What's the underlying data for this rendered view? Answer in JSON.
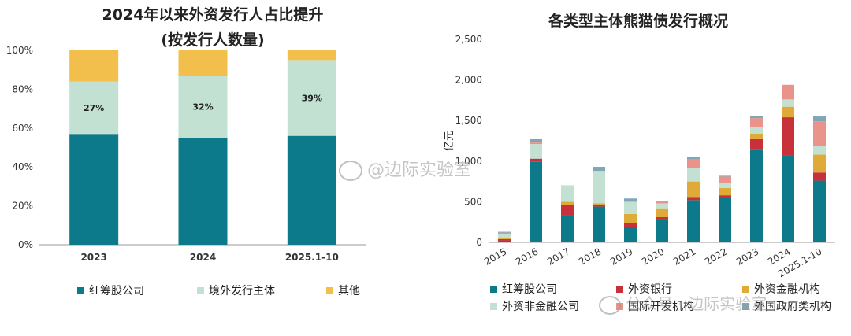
{
  "chart_data": [
    {
      "type": "bar",
      "stacked": true,
      "title_line1": "2024年以来外资发行人占比提升",
      "title_line2": "(按发行人数量)",
      "categories": [
        "2023",
        "2024",
        "2025.1-10"
      ],
      "series": [
        {
          "name": "红筹股公司",
          "color": "#0c7a8a",
          "values": [
            57,
            55,
            56
          ]
        },
        {
          "name": "境外发行主体",
          "color": "#c2e1d3",
          "values": [
            27,
            32,
            39
          ]
        },
        {
          "name": "其他",
          "color": "#f2bf4d",
          "values": [
            16,
            13,
            5
          ]
        }
      ],
      "data_labels": [
        "27%",
        "32%",
        "39%"
      ],
      "y_ticks": [
        "0%",
        "20%",
        "40%",
        "60%",
        "80%",
        "100%"
      ],
      "ylim": [
        0,
        100
      ],
      "legend_position": "bottom"
    },
    {
      "type": "bar",
      "stacked": true,
      "title": "各类型主体熊猫债发行概况",
      "ylabel": "亿元",
      "categories": [
        "2015",
        "2016",
        "2017",
        "2018",
        "2019",
        "2020",
        "2021",
        "2022",
        "2023",
        "2024",
        "2025.1-10"
      ],
      "series": [
        {
          "name": "红筹股公司",
          "color": "#0c7a8a",
          "values": [
            20,
            990,
            330,
            440,
            190,
            290,
            520,
            550,
            1150,
            1070,
            760
          ]
        },
        {
          "name": "外资银行",
          "color": "#c8303a",
          "values": [
            20,
            40,
            130,
            20,
            50,
            20,
            40,
            30,
            120,
            470,
            100
          ]
        },
        {
          "name": "外资金融机构",
          "color": "#e0aa38",
          "values": [
            10,
            0,
            40,
            20,
            110,
            110,
            190,
            90,
            70,
            130,
            220
          ]
        },
        {
          "name": "外资非金融公司",
          "color": "#c2e1d3",
          "values": [
            50,
            180,
            190,
            400,
            150,
            60,
            170,
            60,
            80,
            90,
            110
          ]
        },
        {
          "name": "国际开发机构",
          "color": "#e9938a",
          "values": [
            20,
            20,
            0,
            0,
            0,
            20,
            100,
            80,
            110,
            180,
            300
          ]
        },
        {
          "name": "外国政府类机构",
          "color": "#7fa7b8",
          "values": [
            10,
            40,
            10,
            50,
            40,
            10,
            30,
            10,
            30,
            0,
            60
          ]
        }
      ],
      "y_ticks": [
        "0",
        "500",
        "1,000",
        "1,500",
        "2,000",
        "2,500"
      ],
      "ylim": [
        0,
        2500
      ],
      "legend_position": "bottom"
    }
  ],
  "watermarks": {
    "weibo": "@边际实验室",
    "wechat": "公众号 · 边际实验室"
  }
}
